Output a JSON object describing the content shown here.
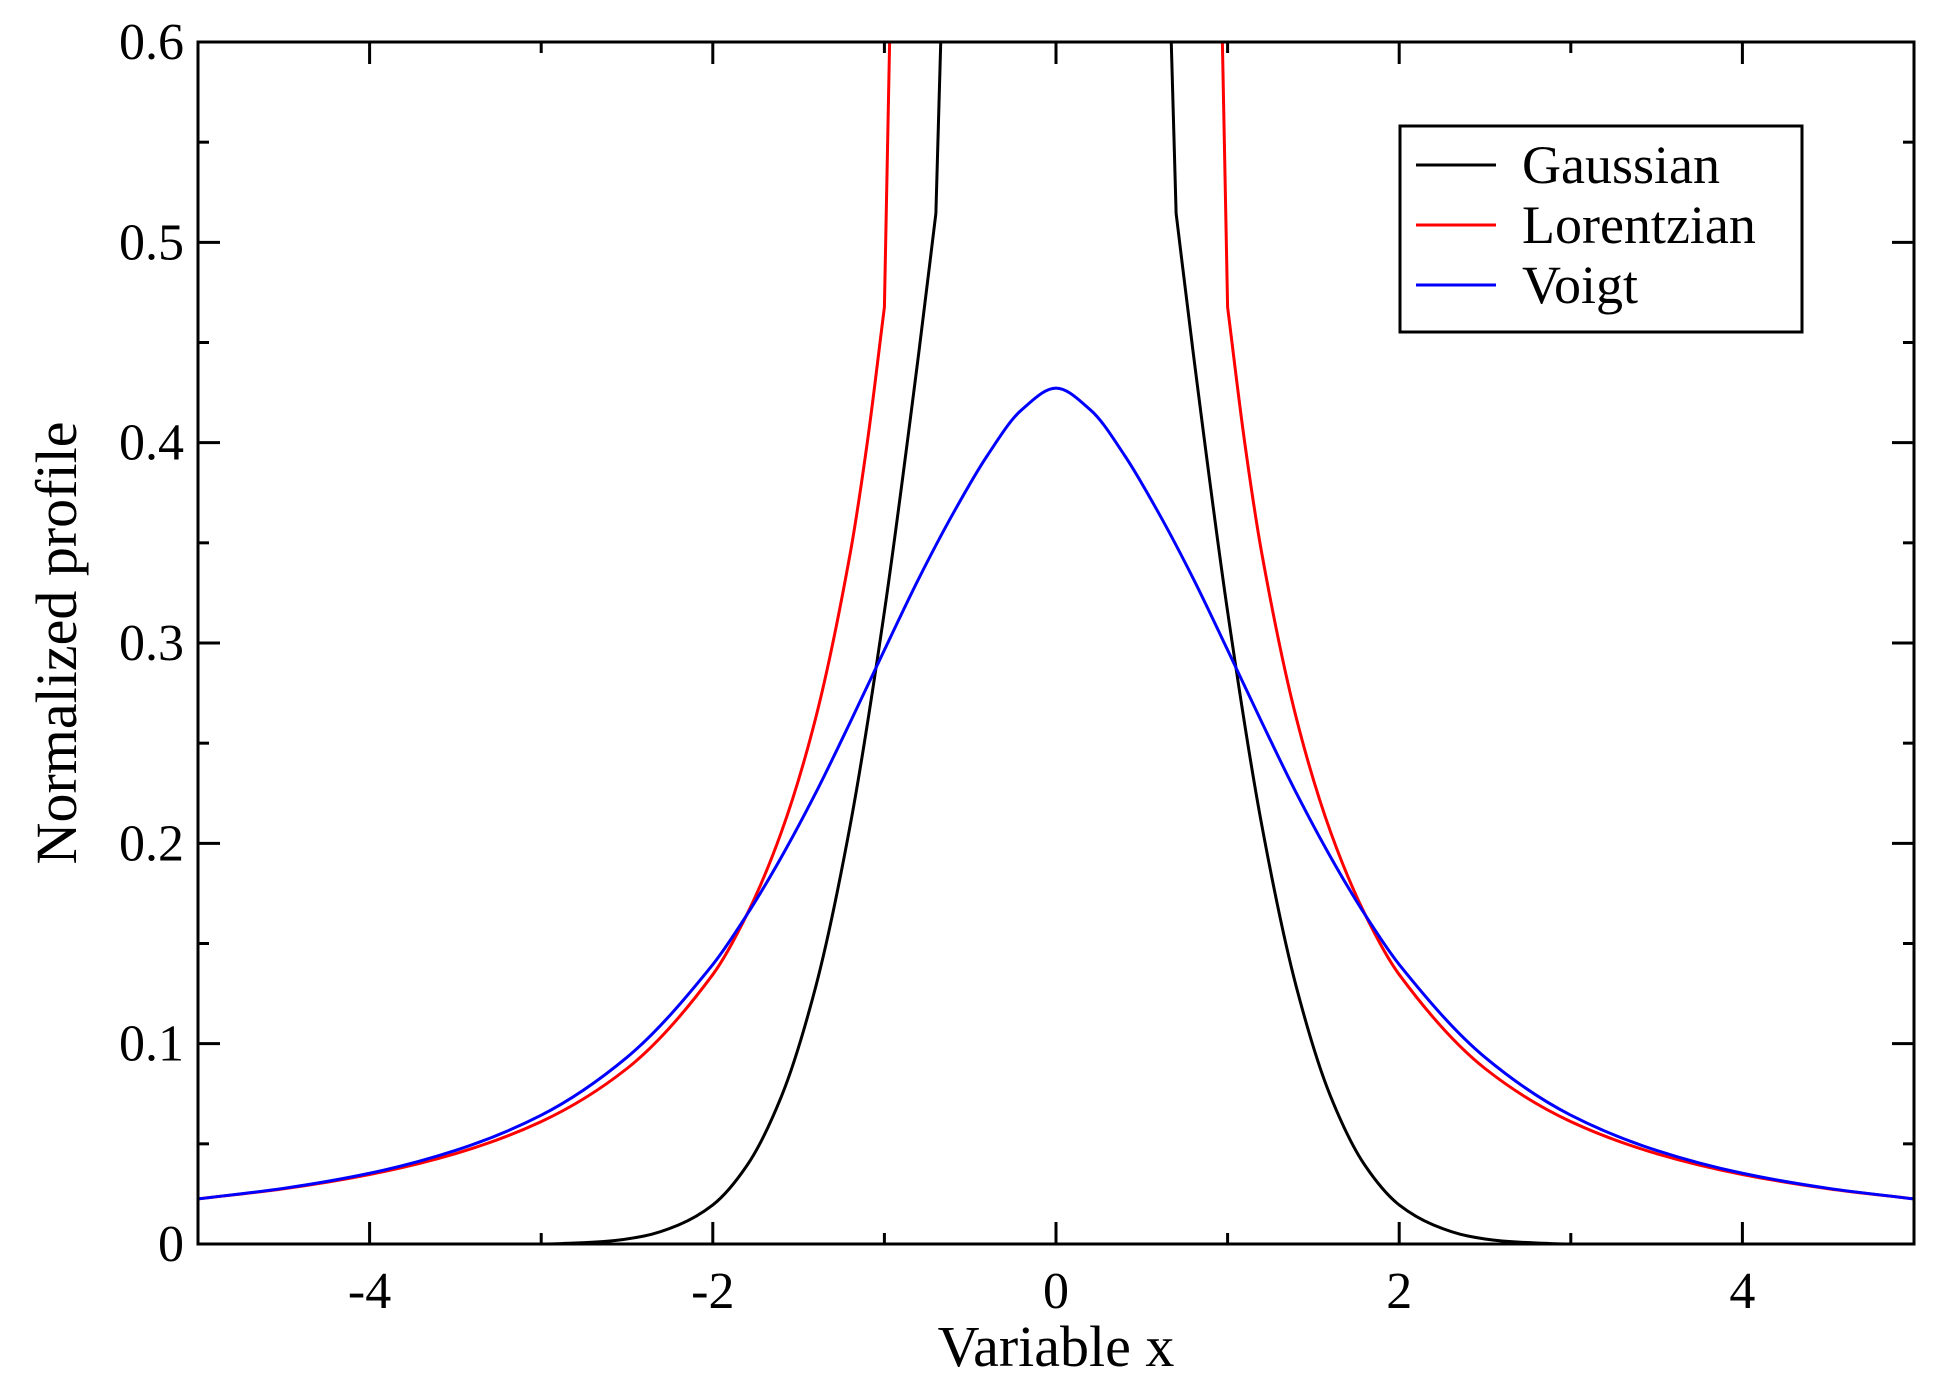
{
  "chart_data": {
    "type": "line",
    "xlabel": "Variable x",
    "ylabel": "Normalized profile",
    "xlim": [
      -5,
      5
    ],
    "ylim": [
      0,
      0.6
    ],
    "x_ticks": [
      -4,
      -2,
      0,
      2,
      4
    ],
    "x_tick_labels": [
      "-4",
      "-2",
      "0",
      "2",
      "4"
    ],
    "y_ticks": [
      0,
      0.1,
      0.2,
      0.3,
      0.4,
      0.5,
      0.6
    ],
    "y_tick_labels": [
      "0",
      "0.1",
      "0.2",
      "0.3",
      "0.4",
      "0.5",
      "0.6"
    ],
    "legend_position": "top-right",
    "grid": false,
    "series": [
      {
        "name": "Gaussian",
        "color": "#000000",
        "x": [
          -5,
          -4,
          -3,
          -2.8,
          -2.6,
          -2.4,
          -2.2,
          -2.0,
          -1.8,
          -1.6,
          -1.4,
          -1.2,
          -1.0,
          -0.8,
          -0.7,
          0.7,
          0.8,
          1.0,
          1.2,
          1.4,
          1.6,
          1.8,
          2.0,
          2.2,
          2.4,
          2.6,
          2.8,
          3,
          4,
          5
        ],
        "y": [
          0.0,
          0.0,
          0.0,
          0.0005,
          0.0015,
          0.004,
          0.0095,
          0.0195,
          0.0393,
          0.0737,
          0.1285,
          0.2087,
          0.3157,
          0.4446,
          0.5144,
          0.5144,
          0.4446,
          0.3157,
          0.2087,
          0.1285,
          0.0737,
          0.0393,
          0.0195,
          0.0095,
          0.004,
          0.0015,
          0.0005,
          0.0,
          0.0,
          0.0
        ]
      },
      {
        "name": "Lorentzian",
        "color": "#ff0000",
        "x": [
          -5,
          -4.5,
          -4,
          -3.5,
          -3,
          -2.5,
          -2,
          -1.8,
          -1.6,
          -1.4,
          -1.2,
          -1.1,
          -1.0,
          1.0,
          1.1,
          1.2,
          1.4,
          1.6,
          1.8,
          2,
          2.5,
          3,
          3.5,
          4,
          4.5,
          5
        ],
        "y": [
          0.0225,
          0.0276,
          0.0347,
          0.0451,
          0.0611,
          0.0876,
          0.1345,
          0.1647,
          0.2057,
          0.2627,
          0.3444,
          0.3999,
          0.4676,
          0.4676,
          0.3999,
          0.3444,
          0.2627,
          0.2057,
          0.1647,
          0.1345,
          0.0876,
          0.0611,
          0.0451,
          0.0347,
          0.0276,
          0.0225
        ]
      },
      {
        "name": "Voigt",
        "color": "#0000ff",
        "x": [
          -5,
          -4.5,
          -4,
          -3.5,
          -3,
          -2.5,
          -2,
          -1.8,
          -1.6,
          -1.4,
          -1.2,
          -1.0,
          -0.8,
          -0.6,
          -0.4,
          -0.2,
          0,
          0.2,
          0.4,
          0.6,
          0.8,
          1.0,
          1.2,
          1.4,
          1.6,
          1.8,
          2,
          2.5,
          3,
          3.5,
          4,
          4.5,
          5
        ],
        "y": [
          0.0225,
          0.0278,
          0.0353,
          0.0467,
          0.0643,
          0.0932,
          0.1395,
          0.1645,
          0.1932,
          0.2252,
          0.2603,
          0.2965,
          0.3321,
          0.3646,
          0.3936,
          0.4164,
          0.4272,
          0.4164,
          0.3936,
          0.3646,
          0.3321,
          0.2965,
          0.2603,
          0.2252,
          0.1932,
          0.1645,
          0.1395,
          0.0932,
          0.0643,
          0.0467,
          0.0353,
          0.0278,
          0.0225
        ]
      }
    ]
  }
}
